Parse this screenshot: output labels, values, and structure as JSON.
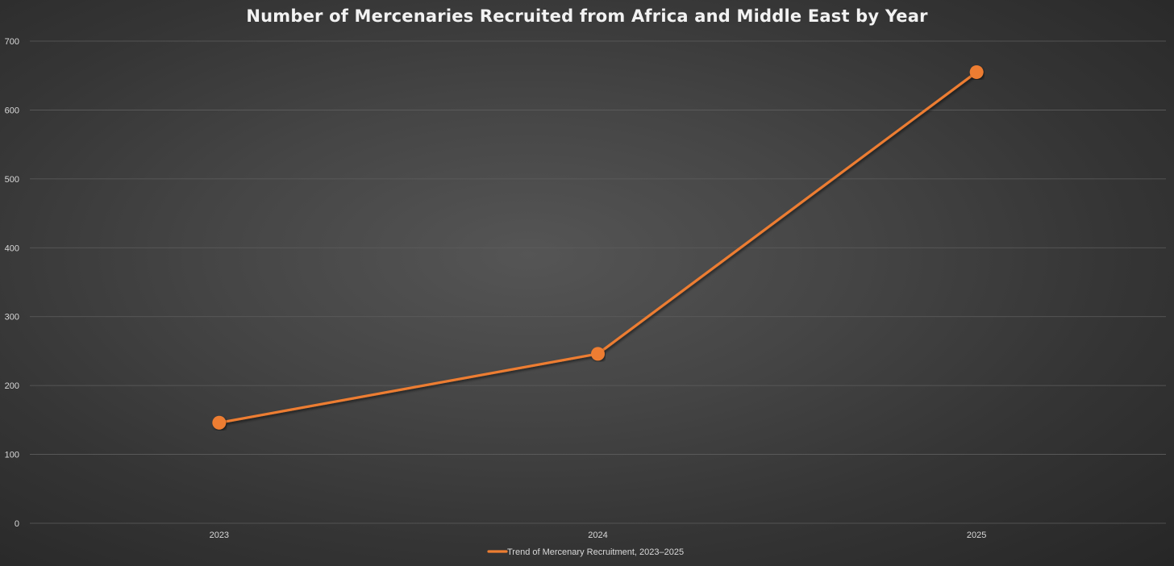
{
  "chart_data": {
    "type": "line",
    "title": "Number of Mercenaries Recruited from Africa and Middle East by Year",
    "xlabel": "",
    "ylabel": "",
    "categories": [
      "2023",
      "2024",
      "2025"
    ],
    "series": [
      {
        "name": "Trend of Mercenary Recruitment, 2023–2025",
        "values": [
          146,
          246,
          655
        ]
      }
    ],
    "ylim": [
      0,
      700
    ],
    "yticks": [
      "0",
      "100",
      "200",
      "300",
      "400",
      "500",
      "600",
      "700"
    ],
    "grid": true,
    "legend_position": "bottom",
    "colors": {
      "series": "#ed7d31",
      "grid": "#5e5e5e",
      "text": "#d9d9d9",
      "title": "#f2f2f2"
    }
  }
}
